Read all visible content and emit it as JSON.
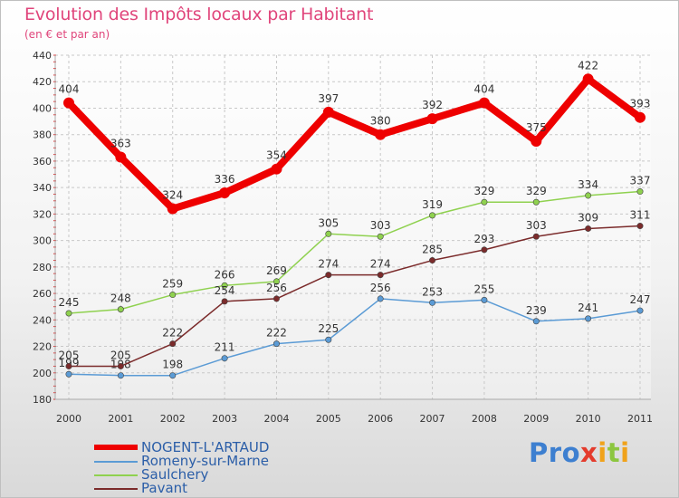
{
  "header": {
    "title": "Evolution des Impôts locaux par Habitant",
    "subtitle": "(en € et par an)"
  },
  "logo": {
    "text": "Proxiti",
    "letters": [
      {
        "ch": "P",
        "color": "#3d7fd0"
      },
      {
        "ch": "r",
        "color": "#3d7fd0"
      },
      {
        "ch": "o",
        "color": "#3d7fd0"
      },
      {
        "ch": "x",
        "color": "#e43b2c"
      },
      {
        "ch": "i",
        "color": "#f0a21b"
      },
      {
        "ch": "t",
        "color": "#8cc63f"
      },
      {
        "ch": "i",
        "color": "#f0a21b"
      }
    ]
  },
  "chart_data": {
    "type": "line",
    "title": "Evolution des Impôts locaux par Habitant",
    "subtitle": "(en € et par an)",
    "xlabel": "",
    "ylabel": "",
    "x": [
      "2000",
      "2001",
      "2002",
      "2003",
      "2004",
      "2005",
      "2006",
      "2007",
      "2008",
      "2009",
      "2010",
      "2011"
    ],
    "ylim": [
      180,
      440
    ],
    "yticks": [
      180,
      200,
      220,
      240,
      260,
      280,
      300,
      320,
      340,
      360,
      380,
      400,
      420,
      440
    ],
    "grid": true,
    "legend_position": "bottom-left",
    "series": [
      {
        "name": "NOGENT-L'ARTAUD",
        "color": "#ee0000",
        "values": [
          404,
          363,
          324,
          336,
          354,
          397,
          380,
          392,
          404,
          375,
          422,
          393
        ]
      },
      {
        "name": "Romeny-sur-Marne",
        "color": "#5b9bd5",
        "values": [
          199,
          198,
          198,
          211,
          222,
          225,
          256,
          253,
          255,
          239,
          241,
          247
        ]
      },
      {
        "name": "Saulchery",
        "color": "#8fd14f",
        "values": [
          245,
          248,
          259,
          266,
          269,
          305,
          303,
          319,
          329,
          329,
          334,
          337
        ]
      },
      {
        "name": "Pavant",
        "color": "#7b2b2b",
        "values": [
          205,
          205,
          222,
          254,
          256,
          274,
          274,
          285,
          293,
          303,
          309,
          311
        ]
      }
    ]
  }
}
